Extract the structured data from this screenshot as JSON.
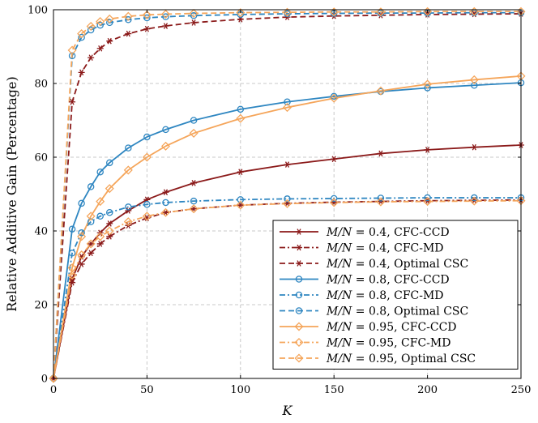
{
  "chart_data": {
    "type": "line",
    "xlabel": "K",
    "ylabel": "Relative Additive Gain (Percentage)",
    "xlim": [
      0,
      250
    ],
    "ylim": [
      0,
      100
    ],
    "xticks": [
      0,
      50,
      100,
      150,
      200,
      250
    ],
    "yticks": [
      0,
      20,
      40,
      60,
      80,
      100
    ],
    "grid": true,
    "legend_position": "bottom-right",
    "x": [
      0,
      10,
      15,
      20,
      25,
      30,
      40,
      50,
      60,
      75,
      100,
      125,
      150,
      175,
      200,
      225,
      250
    ],
    "series": [
      {
        "name": "M/N = 0.4, CFC-CCD",
        "color": "#8b1a1a",
        "dash": "solid",
        "marker": "star",
        "values": [
          0,
          27,
          33,
          36.5,
          39.5,
          42,
          45.5,
          48.5,
          50.5,
          53,
          56,
          58,
          59.5,
          61,
          62,
          62.7,
          63.3
        ]
      },
      {
        "name": "M/N = 0.4, CFC-MD",
        "color": "#8b1a1a",
        "dash": "dashdot",
        "marker": "star",
        "values": [
          0,
          26,
          31,
          34,
          36.5,
          38.5,
          41.5,
          43.5,
          45,
          46,
          47,
          47.5,
          47.8,
          48,
          48.2,
          48.3,
          48.4
        ]
      },
      {
        "name": "M/N = 0.4, Optimal CSC",
        "color": "#8b1a1a",
        "dash": "dashed",
        "marker": "star",
        "values": [
          0,
          75,
          83,
          87,
          89.5,
          91.5,
          93.5,
          94.8,
          95.6,
          96.5,
          97.4,
          98,
          98.3,
          98.5,
          98.7,
          98.8,
          98.9
        ]
      },
      {
        "name": "M/N = 0.8, CFC-CCD",
        "color": "#2e86c1",
        "dash": "solid",
        "marker": "circle",
        "values": [
          0,
          40.5,
          47.5,
          52,
          56,
          58.5,
          62.5,
          65.5,
          67.5,
          70,
          73,
          75,
          76.5,
          77.8,
          78.8,
          79.5,
          80.2
        ]
      },
      {
        "name": "M/N = 0.8, CFC-MD",
        "color": "#2e86c1",
        "dash": "dashdot",
        "marker": "circle",
        "values": [
          0,
          34,
          39.5,
          42.5,
          44,
          45,
          46.5,
          47.2,
          47.7,
          48.1,
          48.5,
          48.7,
          48.8,
          48.9,
          49,
          49,
          49
        ]
      },
      {
        "name": "M/N = 0.8, Optimal CSC",
        "color": "#2e86c1",
        "dash": "dashed",
        "marker": "circle",
        "values": [
          0,
          87.5,
          92.5,
          94.5,
          95.8,
          96.5,
          97.3,
          97.8,
          98.1,
          98.4,
          98.7,
          98.9,
          99,
          99.1,
          99.1,
          99.2,
          99.2
        ]
      },
      {
        "name": "M/N = 0.95, CFC-CCD",
        "color": "#f5a55a",
        "dash": "solid",
        "marker": "diamond",
        "values": [
          0,
          30,
          38.5,
          44,
          48,
          51.5,
          56.5,
          60,
          63,
          66.5,
          70.5,
          73.5,
          76,
          78,
          79.8,
          81,
          82
        ]
      },
      {
        "name": "M/N = 0.95, CFC-MD",
        "color": "#f5a55a",
        "dash": "dashdot",
        "marker": "diamond",
        "values": [
          0,
          28,
          33.5,
          36.5,
          38.5,
          40,
          42.5,
          44,
          45,
          46,
          47,
          47.4,
          47.7,
          47.9,
          48,
          48.1,
          48.2
        ]
      },
      {
        "name": "M/N = 0.95, Optimal CSC",
        "color": "#f5a55a",
        "dash": "dashed",
        "marker": "diamond",
        "values": [
          0,
          89,
          93.5,
          95.5,
          96.8,
          97.5,
          98.2,
          98.6,
          98.8,
          99,
          99.2,
          99.3,
          99.4,
          99.4,
          99.5,
          99.5,
          99.5
        ]
      }
    ],
    "legend_labels": [
      {
        "math": "M/N",
        "rest": " = 0.4, CFC-CCD"
      },
      {
        "math": "M/N",
        "rest": " = 0.4, CFC-MD"
      },
      {
        "math": "M/N",
        "rest": " = 0.4, Optimal CSC"
      },
      {
        "math": "M/N",
        "rest": " = 0.8, CFC-CCD"
      },
      {
        "math": "M/N",
        "rest": " = 0.8, CFC-MD"
      },
      {
        "math": "M/N",
        "rest": " = 0.8, Optimal CSC"
      },
      {
        "math": "M/N",
        "rest": " = 0.95, CFC-CCD"
      },
      {
        "math": "M/N",
        "rest": " = 0.95, CFC-MD"
      },
      {
        "math": "M/N",
        "rest": " = 0.95, Optimal CSC"
      }
    ]
  }
}
